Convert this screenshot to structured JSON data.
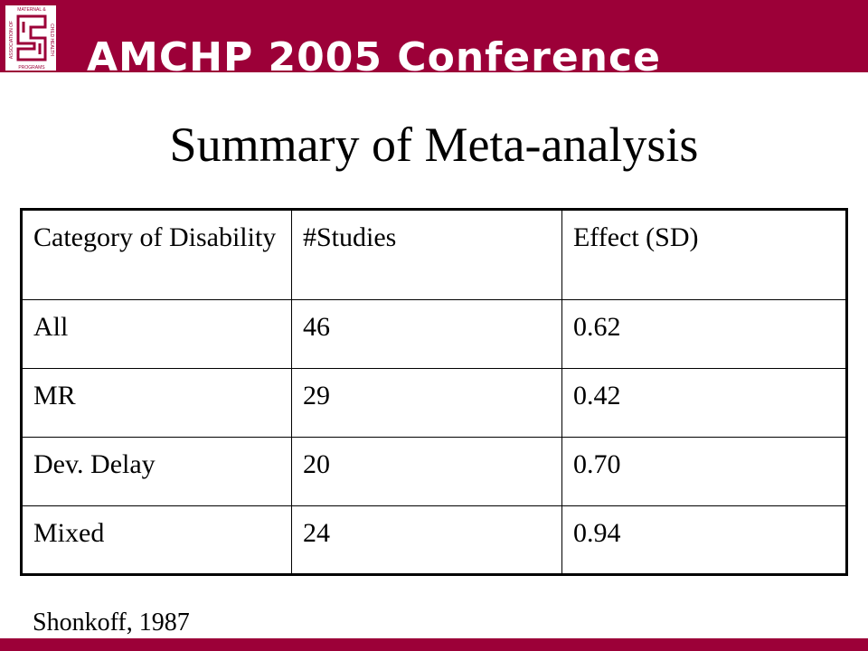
{
  "header": {
    "conference_title": "AMCHP 2005 Conference",
    "logo_text": "ASSOCIATION OF MATERNAL & CHILD HEALTH PROGRAMS",
    "band_color": "#9c0038"
  },
  "slide": {
    "title": "Summary of Meta-analysis"
  },
  "table": {
    "headers": [
      "Category of Disability",
      "#Studies",
      "Effect (SD)"
    ],
    "rows": [
      [
        "All",
        "46",
        "0.62"
      ],
      [
        "MR",
        "29",
        "0.42"
      ],
      [
        "Dev. Delay",
        "20",
        "0.70"
      ],
      [
        "Mixed",
        "24",
        "0.94"
      ]
    ]
  },
  "citation": "Shonkoff, 1987"
}
